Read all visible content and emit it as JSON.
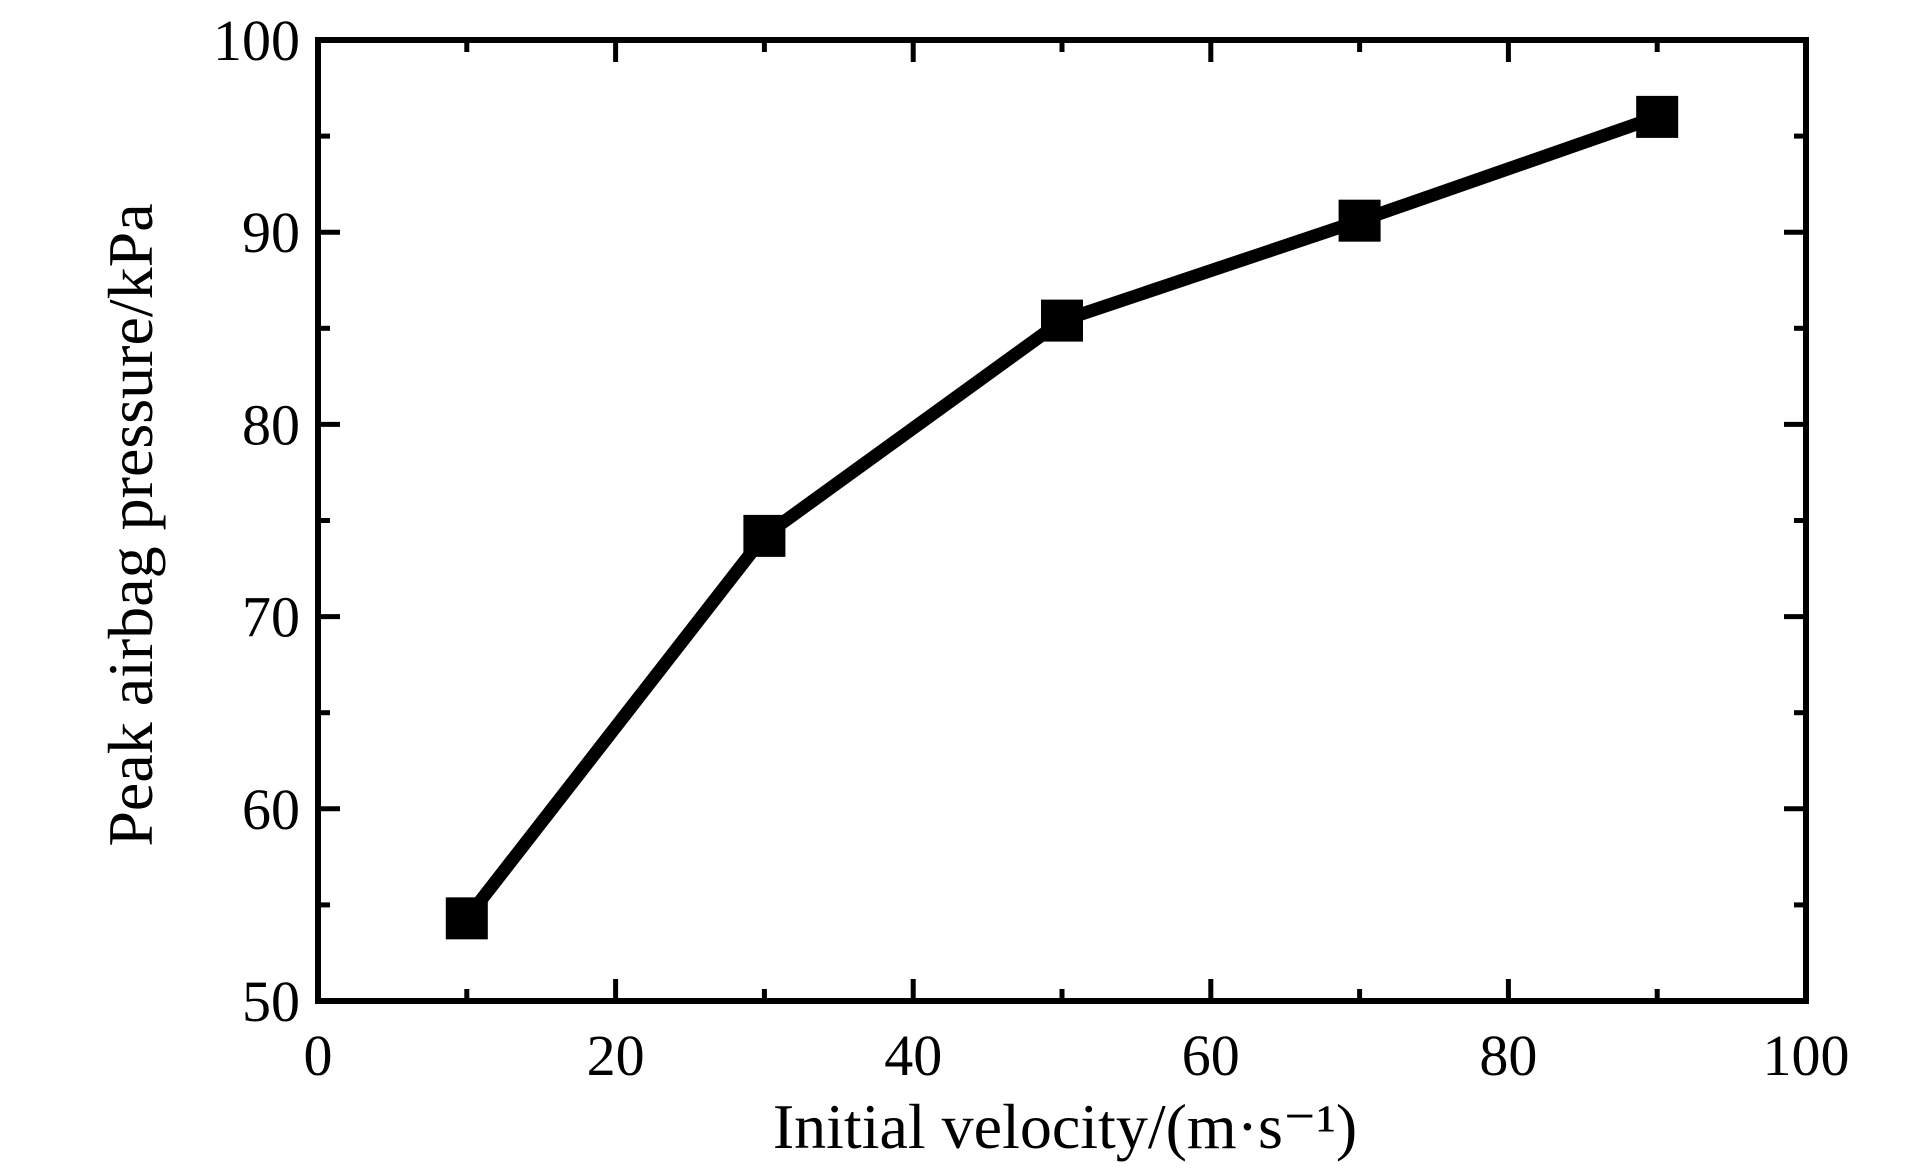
{
  "chart_data": {
    "type": "line",
    "title": "",
    "xlabel": "Initial velocity/(m·s⁻¹)",
    "ylabel": "Peak airbag pressure/kPa",
    "xlim": [
      0,
      100
    ],
    "ylim": [
      50,
      100
    ],
    "xticks": [
      0,
      20,
      40,
      60,
      80,
      100
    ],
    "yticks": [
      50,
      60,
      70,
      80,
      90,
      100
    ],
    "xtick_labels": [
      "0",
      "20",
      "40",
      "60",
      "80",
      "100"
    ],
    "ytick_labels": [
      "50",
      "60",
      "70",
      "80",
      "90",
      "100"
    ],
    "grid": false,
    "legend": "none",
    "series": [
      {
        "marker": "square",
        "color": "#000000",
        "x": [
          10,
          30,
          50,
          70,
          90
        ],
        "y": [
          54.3,
          74.2,
          85.4,
          90.6,
          96.0
        ]
      }
    ]
  }
}
